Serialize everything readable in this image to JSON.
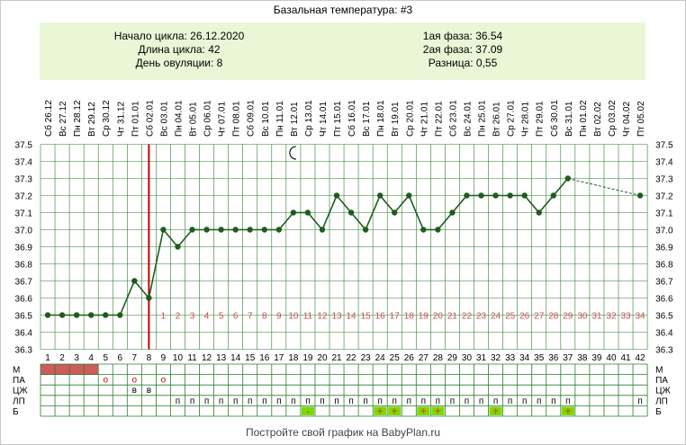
{
  "header": {
    "title": "Базальная температура: #3",
    "cycle_start": "Начало цикла: 26.12.2020",
    "cycle_length": "Длина цикла: 42",
    "ovulation_day": "День овуляции: 8",
    "phase1": "1ая фаза: 36.54",
    "phase2": "2ая фаза: 37.09",
    "difference": "Разница: 0,55"
  },
  "footer": {
    "text": "Постройте свой график на BabyPlan.ru"
  },
  "colors": {
    "line": "#1e5c1e",
    "ovulation": "#cc0000",
    "grid": "#2e7d2e",
    "info_bg": "#eaf7d7",
    "post_ov_numbers": "#c0504d",
    "period": "#cd5c5c",
    "bright_green": "#7cd800"
  },
  "chart_data": {
    "type": "line",
    "title": "Базальная температура: #3",
    "ylim": [
      36.3,
      37.5
    ],
    "yticks": [
      "37.5",
      "37.4",
      "37.3",
      "37.2",
      "37.1",
      "37.0",
      "36.9",
      "36.8",
      "36.7",
      "36.6",
      "36.5",
      "36.4",
      "36.3"
    ],
    "cycle_days": [
      "1",
      "2",
      "3",
      "4",
      "5",
      "6",
      "7",
      "8",
      "9",
      "10",
      "11",
      "12",
      "13",
      "14",
      "15",
      "16",
      "17",
      "18",
      "19",
      "20",
      "21",
      "22",
      "23",
      "24",
      "25",
      "26",
      "27",
      "28",
      "29",
      "30",
      "31",
      "32",
      "33",
      "34",
      "35",
      "36",
      "37",
      "38",
      "39",
      "40",
      "41",
      "42"
    ],
    "dates": [
      "Сб 26.12",
      "Вс 27.12",
      "Пн 28.12",
      "Вт 29.12",
      "Ср 30.12",
      "Чт 31.12",
      "Пт 01.01",
      "Сб 02.01",
      "Вс 03.01",
      "Пн 04.01",
      "Вт 05.01",
      "Ср 06.01",
      "Чт 07.01",
      "Пт 08.01",
      "Сб 09.01",
      "Вс 10.01",
      "Пн 11.01",
      "Вт 12.01",
      "Ср 13.01",
      "Чт 14.01",
      "Пт 15.01",
      "Сб 16.01",
      "Вс 17.01",
      "Пн 18.01",
      "Вт 19.01",
      "Ср 20.01",
      "Чт 21.01",
      "Пт 22.01",
      "Сб 23.01",
      "Вс 24.01",
      "Пн 25.01",
      "Вт 26.01",
      "Ср 27.01",
      "Чт 28.01",
      "Пт 29.01",
      "Сб 30.01",
      "Вс 31.01",
      "Пн 01.02",
      "Вт 02.02",
      "Ср 03.02",
      "Чт 04.02",
      "Пт 05.02"
    ],
    "temperatures": [
      36.5,
      36.5,
      36.5,
      36.5,
      36.5,
      36.5,
      36.7,
      36.6,
      37.0,
      36.9,
      37.0,
      37.0,
      37.0,
      37.0,
      37.0,
      37.0,
      37.0,
      37.1,
      37.1,
      37.0,
      37.2,
      37.1,
      37.0,
      37.2,
      37.1,
      37.2,
      37.0,
      37.0,
      37.1,
      37.2,
      37.2,
      37.2,
      37.2,
      37.2,
      37.1,
      37.2,
      37.3,
      null,
      null,
      null,
      null,
      37.2
    ],
    "ovulation_day": 8,
    "post_ovulation_labels": [
      "1",
      "2",
      "3",
      "4",
      "5",
      "6",
      "7",
      "8",
      "9",
      "10",
      "11",
      "12",
      "13",
      "14",
      "15",
      "16",
      "17",
      "18",
      "19",
      "20",
      "21",
      "22",
      "23",
      "24",
      "25",
      "26",
      "27",
      "28",
      "29",
      "30",
      "31",
      "32",
      "33",
      "34"
    ],
    "moon_day": 18,
    "rows": [
      "М",
      "ПА",
      "ЦЖ",
      "ЛП",
      "Б"
    ],
    "menstruation_days": [
      1,
      2,
      3,
      4
    ],
    "pa_marks": [
      {
        "day": 5,
        "mark": "о"
      },
      {
        "day": 7,
        "mark": "о"
      },
      {
        "day": 9,
        "mark": "о"
      }
    ],
    "cm_marks": [
      {
        "day": 7,
        "mark": "в"
      },
      {
        "day": 8,
        "mark": "в"
      }
    ],
    "lp_days": [
      10,
      11,
      12,
      13,
      14,
      15,
      16,
      17,
      18,
      19,
      20,
      21,
      22,
      23,
      24,
      25,
      26,
      27,
      28,
      29,
      30,
      31,
      32,
      33,
      34,
      35,
      36,
      37,
      42
    ],
    "lp_mark": "п",
    "b_marks": [
      {
        "day": 19,
        "mark": "-"
      },
      {
        "day": 24,
        "mark": "+"
      },
      {
        "day": 25,
        "mark": "+"
      },
      {
        "day": 27,
        "mark": "+"
      },
      {
        "day": 28,
        "mark": "+"
      },
      {
        "day": 32,
        "mark": "+"
      },
      {
        "day": 37,
        "mark": "+"
      }
    ]
  }
}
